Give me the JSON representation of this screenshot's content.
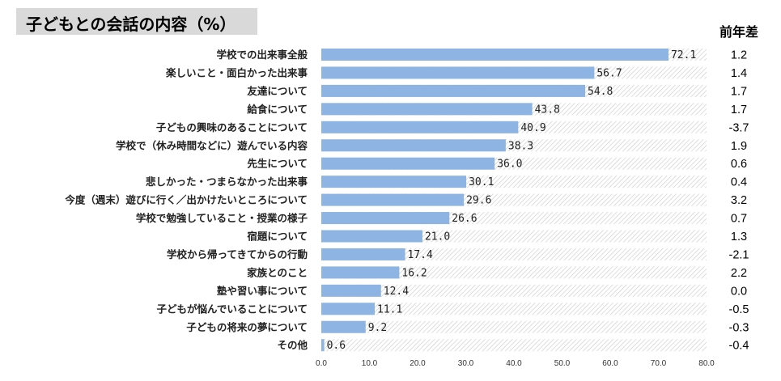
{
  "title": "子どもとの会話の内容（%）",
  "diff_header": "前年差",
  "chart_data": {
    "type": "bar",
    "orientation": "horizontal",
    "title": "子どもとの会話の内容（%）",
    "xlim": [
      0,
      80
    ],
    "xticks": [
      "0.0",
      "10.0",
      "20.0",
      "30.0",
      "40.0",
      "50.0",
      "60.0",
      "70.0",
      "80.0"
    ],
    "categories": [
      "学校での出来事全般",
      "楽しいこと・面白かった出来事",
      "友達について",
      "給食について",
      "子どもの興味のあることについて",
      "学校で（休み時間などに）遊んでいる内容",
      "先生について",
      "悲しかった・つまらなかった出来事",
      "今度（週末）遊びに行く／出かけたいところについて",
      "学校で勉強していること・授業の様子",
      "宿題について",
      "学校から帰ってきてからの行動",
      "家族とのこと",
      "塾や習い事について",
      "子どもが悩んでいることについて",
      "子どもの将来の夢について",
      "その他"
    ],
    "values": [
      72.1,
      56.7,
      54.8,
      43.8,
      40.9,
      38.3,
      36.0,
      30.1,
      29.6,
      26.6,
      21.0,
      17.4,
      16.2,
      12.4,
      11.1,
      9.2,
      0.6
    ],
    "value_labels": [
      "72.1",
      "56.7",
      "54.8",
      "43.8",
      "40.9",
      "38.3",
      "36.0",
      "30.1",
      "29.6",
      "26.6",
      "21.0",
      "17.4",
      "16.2",
      "12.4",
      "11.1",
      "9.2",
      "0.6"
    ],
    "year_diff": [
      "1.2",
      "1.4",
      "1.7",
      "1.7",
      "-3.7",
      "1.9",
      "0.6",
      "0.4",
      "3.2",
      "0.7",
      "1.3",
      "-2.1",
      "2.2",
      "0.0",
      "-0.5",
      "-0.3",
      "-0.4"
    ],
    "bar_color": "#8db4e2",
    "track_pattern": "diagonal-hatch",
    "grid": false
  }
}
